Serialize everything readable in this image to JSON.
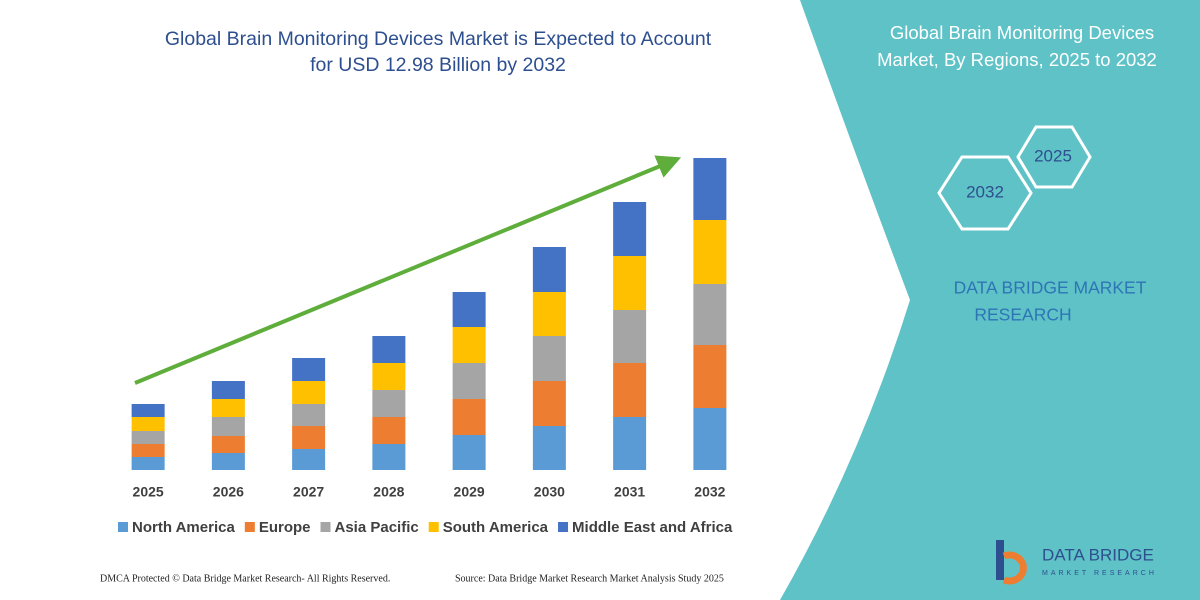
{
  "chart_data": {
    "type": "stacked-bar",
    "title": [
      "Global Brain Monitoring Devices Market is Expected to Account",
      "for USD 12.98 Billion by 2032"
    ],
    "categories": [
      "2025",
      "2026",
      "2027",
      "2028",
      "2029",
      "2030",
      "2031",
      "2032"
    ],
    "series": [
      {
        "name": "North America",
        "color": "#5b9bd5",
        "values": [
          13,
          17,
          21,
          26,
          35,
          44,
          53,
          62
        ]
      },
      {
        "name": "Europe",
        "color": "#ed7d31",
        "values": [
          13,
          17,
          23,
          27,
          36,
          45,
          54,
          63
        ]
      },
      {
        "name": "Asia Pacific",
        "color": "#a5a5a5",
        "values": [
          13,
          19,
          22,
          27,
          36,
          45,
          53,
          61
        ]
      },
      {
        "name": "South America",
        "color": "#ffc000",
        "values": [
          14,
          18,
          23,
          27,
          36,
          44,
          54,
          64
        ]
      },
      {
        "name": "Middle East and Africa",
        "color": "#4472c4",
        "values": [
          13,
          18,
          23,
          27,
          35,
          45,
          54,
          62
        ]
      }
    ],
    "ylim": [
      0,
      320
    ]
  },
  "panel": {
    "title": [
      "Global Brain Monitoring Devices",
      "Market, By Regions, 2025 to 2032"
    ],
    "hex_labels": [
      "2025",
      "2032"
    ],
    "brand": [
      "DATA BRIDGE MARKET",
      "RESEARCH"
    ]
  },
  "logo": {
    "name": "DATA BRIDGE",
    "tagline": "MARKET RESEARCH"
  },
  "footer": {
    "left": "DMCA Protected © Data Bridge Market Research-  All Rights Reserved.",
    "right": "Source: Data Bridge Market Research  Market Analysis Study 2025"
  }
}
